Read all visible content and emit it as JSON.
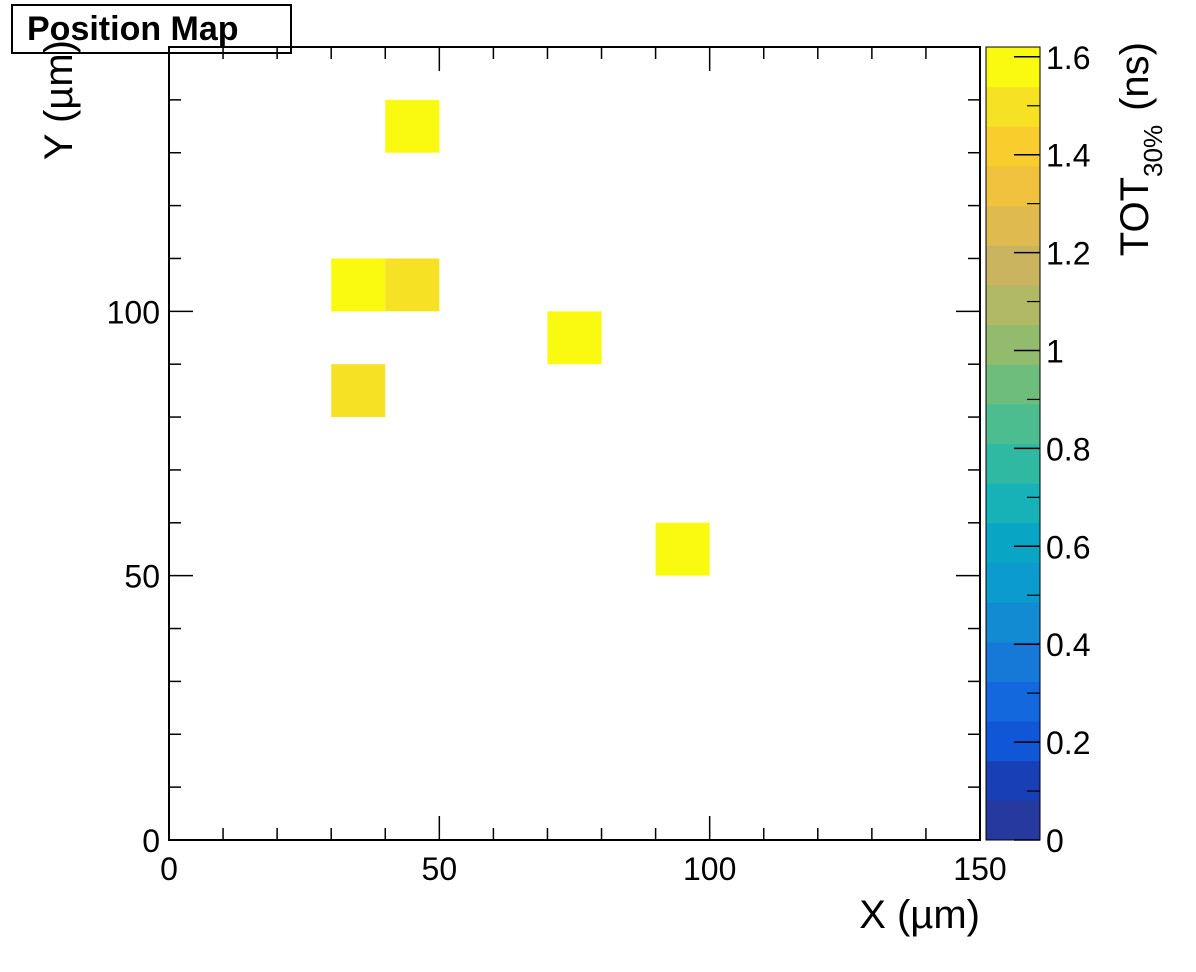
{
  "chart_data": {
    "type": "heatmap",
    "title": "Position Map",
    "xlabel": "X (µm)",
    "ylabel": "Y (µm)",
    "zlabel": {
      "main": "TOT",
      "sub": "30%",
      "unit": "(ns)"
    },
    "xlim": [
      0,
      150
    ],
    "ylim": [
      0,
      150
    ],
    "zlim": [
      0,
      1.62
    ],
    "x_ticks": [
      "0",
      "50",
      "100",
      "150"
    ],
    "y_ticks": [
      "0",
      "50",
      "100"
    ],
    "z_ticks": [
      "0",
      "0.2",
      "0.4",
      "0.6",
      "0.8",
      "1",
      "1.2",
      "1.4",
      "1.6"
    ],
    "bin_size": 10,
    "cells": [
      {
        "x": [
          40,
          50
        ],
        "y": [
          130,
          140
        ],
        "value": 1.6
      },
      {
        "x": [
          30,
          40
        ],
        "y": [
          100,
          110
        ],
        "value": 1.6
      },
      {
        "x": [
          40,
          50
        ],
        "y": [
          100,
          110
        ],
        "value": 1.52
      },
      {
        "x": [
          70,
          80
        ],
        "y": [
          90,
          100
        ],
        "value": 1.6
      },
      {
        "x": [
          30,
          40
        ],
        "y": [
          80,
          90
        ],
        "value": 1.52
      },
      {
        "x": [
          90,
          100
        ],
        "y": [
          50,
          60
        ],
        "value": 1.6
      }
    ],
    "palette": [
      "#26399e",
      "#193fb6",
      "#0f57d6",
      "#1368de",
      "#1679d8",
      "#128bd2",
      "#0b9bcc",
      "#08a6c4",
      "#17b2b8",
      "#2fb9a3",
      "#4bbd8f",
      "#6fbd7d",
      "#92bb6d",
      "#b1b965",
      "#cbb45f",
      "#dfbb4f",
      "#f0c23e",
      "#f9cd2e",
      "#f7e124",
      "#f9fa0f"
    ],
    "grid": false,
    "legend": "colorbar-right"
  }
}
